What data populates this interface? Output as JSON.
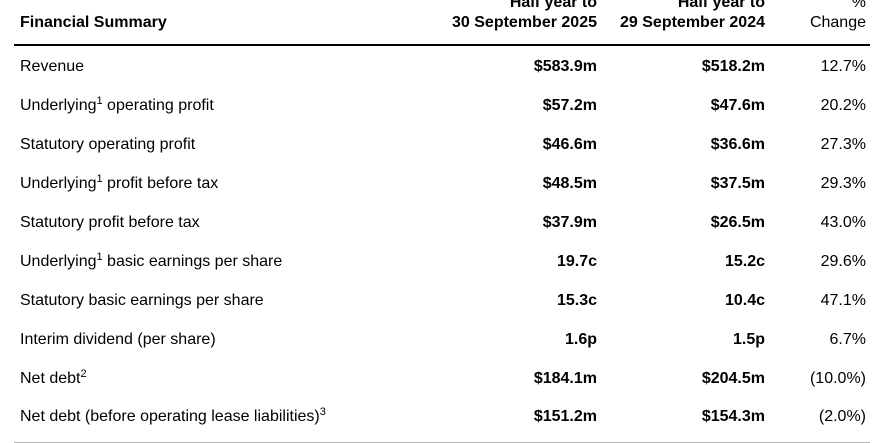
{
  "table": {
    "header": {
      "title": "Financial Summary",
      "col_2025_line1": "Half year to",
      "col_2025_line2": "30 September 2025",
      "col_2024_line1": "Half year to",
      "col_2024_line2": "29 September 2024",
      "change_line1": "%",
      "change_line2": "Change"
    },
    "rows": [
      {
        "label_pre": "Revenue",
        "label_sup": "",
        "label_post": "",
        "val_2025": "$583.9m",
        "val_2024": "$518.2m",
        "change": "12.7%"
      },
      {
        "label_pre": "Underlying",
        "label_sup": "1",
        "label_post": " operating profit",
        "val_2025": "$57.2m",
        "val_2024": "$47.6m",
        "change": "20.2%"
      },
      {
        "label_pre": "Statutory operating profit",
        "label_sup": "",
        "label_post": "",
        "val_2025": "$46.6m",
        "val_2024": "$36.6m",
        "change": "27.3%"
      },
      {
        "label_pre": "Underlying",
        "label_sup": "1",
        "label_post": " profit before tax",
        "val_2025": "$48.5m",
        "val_2024": "$37.5m",
        "change": "29.3%"
      },
      {
        "label_pre": "Statutory profit before tax",
        "label_sup": "",
        "label_post": "",
        "val_2025": "$37.9m",
        "val_2024": "$26.5m",
        "change": "43.0%"
      },
      {
        "label_pre": "Underlying",
        "label_sup": "1",
        "label_post": " basic earnings per share",
        "val_2025": "19.7c",
        "val_2024": "15.2c",
        "change": "29.6%"
      },
      {
        "label_pre": "Statutory basic earnings per share",
        "label_sup": "",
        "label_post": "",
        "val_2025": "15.3c",
        "val_2024": "10.4c",
        "change": "47.1%"
      },
      {
        "label_pre": "Interim dividend (per share)",
        "label_sup": "",
        "label_post": "",
        "val_2025": "1.6p",
        "val_2024": "1.5p",
        "change": "6.7%"
      },
      {
        "label_pre": "Net debt",
        "label_sup": "2",
        "label_post": "",
        "val_2025": "$184.1m",
        "val_2024": "$204.5m",
        "change": "(10.0%)"
      },
      {
        "label_pre": "Net debt (before operating lease liabilities)",
        "label_sup": "3",
        "label_post": "",
        "val_2025": "$151.2m",
        "val_2024": "$154.3m",
        "change": "(2.0%)"
      }
    ]
  },
  "colors": {
    "text": "#000000",
    "header_rule": "#000000",
    "bottom_rule": "#b3b3b3"
  }
}
